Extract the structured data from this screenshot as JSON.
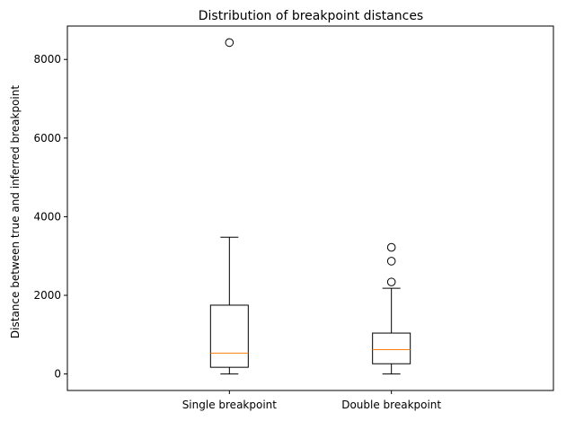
{
  "chart_data": {
    "type": "box",
    "title": "Distribution of breakpoint distances",
    "xlabel": "",
    "ylabel": "Distance between true and inferred breakpoint",
    "ylim": [
      -420,
      8850
    ],
    "yticks": [
      0,
      2000,
      4000,
      6000,
      8000
    ],
    "ytick_labels": [
      "0",
      "2000",
      "4000",
      "6000",
      "8000"
    ],
    "categories": [
      "Single breakpoint",
      "Double breakpoint"
    ],
    "boxes": [
      {
        "whisker_low": 0,
        "q1": 170,
        "median": 530,
        "q3": 1750,
        "whisker_high": 3480,
        "outliers": [
          8430
        ]
      },
      {
        "whisker_low": 0,
        "q1": 260,
        "median": 620,
        "q3": 1040,
        "whisker_high": 2180,
        "outliers": [
          2340,
          2870,
          3220
        ]
      }
    ],
    "grid": false,
    "colors": {
      "box": "#000000",
      "median": "#ff7f0e",
      "outlier": "#000000"
    }
  }
}
